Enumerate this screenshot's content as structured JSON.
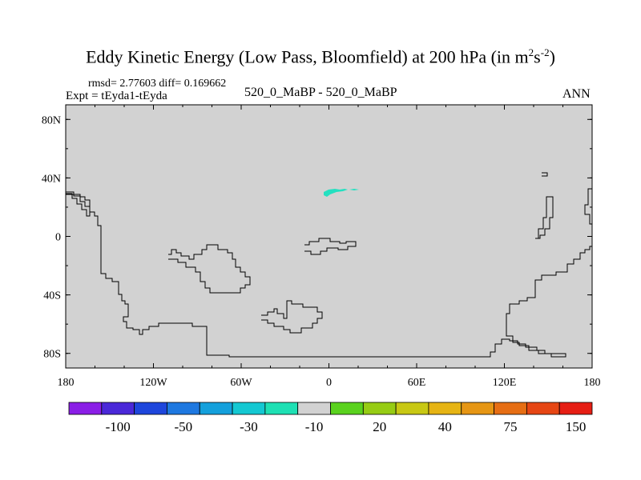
{
  "title": {
    "main": "Eddy Kinetic Energy (Low Pass, Bloomfield) at 200 hPa (in m",
    "sup1": "2",
    "mid": "s",
    "sup2": "-2",
    "end": ")"
  },
  "subtitle": {
    "stats": "rmsd= 2.77603 diff= 0.169662",
    "expt": "Expt = tEyda1-tEyda",
    "center": "520_0_MaBP - 520_0_MaBP",
    "season": "ANN"
  },
  "map": {
    "background_color": "#d2d2d2",
    "anomaly_color": "#24e0c0",
    "lon_ticks": [
      "180",
      "120W",
      "60W",
      "0",
      "60E",
      "120E",
      "180"
    ],
    "lat_ticks": [
      "80N",
      "40N",
      "0",
      "40S",
      "80S"
    ],
    "lon_range": [
      -180,
      180
    ],
    "lat_range": [
      -90,
      90
    ]
  },
  "colorbar": {
    "colors": [
      "#8a1ee6",
      "#4a28d8",
      "#1e46dc",
      "#1e78e0",
      "#14a0dc",
      "#14c8d2",
      "#1ee0b4",
      "#d2d2d2",
      "#5ad21e",
      "#96cc14",
      "#c8c814",
      "#e6b414",
      "#e69614",
      "#e66e14",
      "#e64614",
      "#e61e14"
    ],
    "labels": [
      "-100",
      "-50",
      "-30",
      "-10",
      "20",
      "40",
      "75",
      "150"
    ]
  }
}
